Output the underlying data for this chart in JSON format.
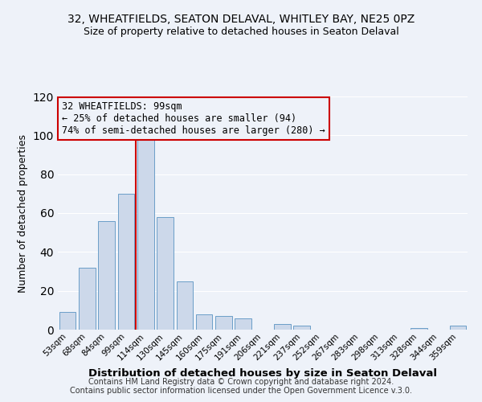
{
  "title1": "32, WHEATFIELDS, SEATON DELAVAL, WHITLEY BAY, NE25 0PZ",
  "title2": "Size of property relative to detached houses in Seaton Delaval",
  "xlabel": "Distribution of detached houses by size in Seaton Delaval",
  "ylabel": "Number of detached properties",
  "bar_labels": [
    "53sqm",
    "68sqm",
    "84sqm",
    "99sqm",
    "114sqm",
    "130sqm",
    "145sqm",
    "160sqm",
    "175sqm",
    "191sqm",
    "206sqm",
    "221sqm",
    "237sqm",
    "252sqm",
    "267sqm",
    "283sqm",
    "298sqm",
    "313sqm",
    "328sqm",
    "344sqm",
    "359sqm"
  ],
  "bar_values": [
    9,
    32,
    56,
    70,
    100,
    58,
    25,
    8,
    7,
    6,
    0,
    3,
    2,
    0,
    0,
    0,
    0,
    0,
    1,
    0,
    2
  ],
  "bar_color_fill": "#ccd8ea",
  "bar_color_edge": "#6b9ec8",
  "vline_color": "#cc0000",
  "vline_index": 3.5,
  "annotation_title": "32 WHEATFIELDS: 99sqm",
  "annotation_line1": "← 25% of detached houses are smaller (94)",
  "annotation_line2": "74% of semi-detached houses are larger (280) →",
  "annotation_box_color": "#cc0000",
  "ylim": [
    0,
    120
  ],
  "yticks": [
    0,
    20,
    40,
    60,
    80,
    100,
    120
  ],
  "background_color": "#eef2f9",
  "grid_color": "#ffffff",
  "footer1": "Contains HM Land Registry data © Crown copyright and database right 2024.",
  "footer2": "Contains public sector information licensed under the Open Government Licence v.3.0."
}
